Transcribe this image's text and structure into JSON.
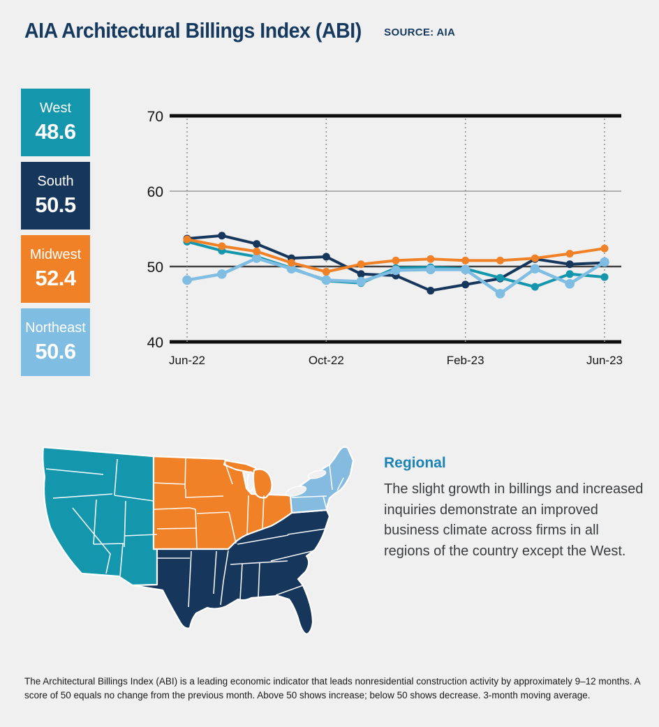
{
  "header": {
    "title": "AIA Architectural Billings Index (ABI)",
    "source_label": "SOURCE: AIA"
  },
  "legend": [
    {
      "region": "West",
      "value": "48.6",
      "color": "#1496ad"
    },
    {
      "region": "South",
      "value": "50.5",
      "color": "#16365c"
    },
    {
      "region": "Midwest",
      "value": "52.4",
      "color": "#f08126"
    },
    {
      "region": "Northeast",
      "value": "50.6",
      "color": "#7fbde2"
    }
  ],
  "chart_data": {
    "type": "line",
    "title": "AIA Architectural Billings Index (ABI) by region, 3-month moving average",
    "x": [
      "Jun-22",
      "Jul-22",
      "Aug-22",
      "Sep-22",
      "Oct-22",
      "Nov-22",
      "Dec-22",
      "Jan-23",
      "Feb-23",
      "Mar-23",
      "Apr-23",
      "May-23",
      "Jun-23"
    ],
    "x_tick_labels": [
      "Jun-22",
      "Oct-22",
      "Feb-23",
      "Jun-23"
    ],
    "x_tick_indices": [
      0,
      4,
      8,
      12
    ],
    "y_ticks": [
      70,
      60,
      50,
      40
    ],
    "ylim": [
      40,
      70
    ],
    "reference_line": 50,
    "grid": "horizontal gridlines at 50 and 60, dotted vertical lines at labeled months",
    "legend_position": "left column of colored value boxes",
    "series": [
      {
        "name": "South",
        "color": "#16365c",
        "values": [
          53.7,
          54.1,
          53.0,
          51.1,
          51.3,
          49.0,
          48.8,
          46.8,
          47.6,
          48.4,
          51.0,
          50.3,
          50.5
        ]
      },
      {
        "name": "West",
        "color": "#1496ad",
        "values": [
          53.3,
          52.1,
          51.3,
          49.8,
          48.1,
          47.8,
          49.8,
          49.9,
          49.7,
          48.5,
          47.3,
          49.0,
          48.6
        ]
      },
      {
        "name": "Northeast",
        "color": "#7fbde2",
        "values": [
          48.2,
          49.0,
          51.1,
          49.7,
          48.2,
          48.0,
          49.5,
          49.6,
          49.6,
          46.4,
          49.7,
          47.7,
          50.6
        ]
      },
      {
        "name": "Midwest",
        "color": "#f08126",
        "values": [
          53.6,
          52.7,
          52.0,
          50.5,
          49.3,
          50.3,
          50.8,
          51.0,
          50.8,
          50.8,
          51.1,
          51.7,
          52.4
        ]
      }
    ]
  },
  "map": {
    "regions": [
      {
        "name": "West",
        "color": "#1496ad"
      },
      {
        "name": "Midwest",
        "color": "#f08126"
      },
      {
        "name": "South",
        "color": "#16365c"
      },
      {
        "name": "Northeast",
        "color": "#84bbdf"
      }
    ]
  },
  "regional": {
    "heading": "Regional",
    "body": "The slight growth in billings and increased inquiries demonstrate an improved business climate across firms in all regions of the country except the West."
  },
  "footnote": "The Architectural Billings Index (ABI) is a leading economic indicator that leads nonresidential construction activity by approximately 9–12 months. A score of 50 equals no change from the previous month. Above 50 shows increase; below 50 shows decrease. 3-month moving average."
}
